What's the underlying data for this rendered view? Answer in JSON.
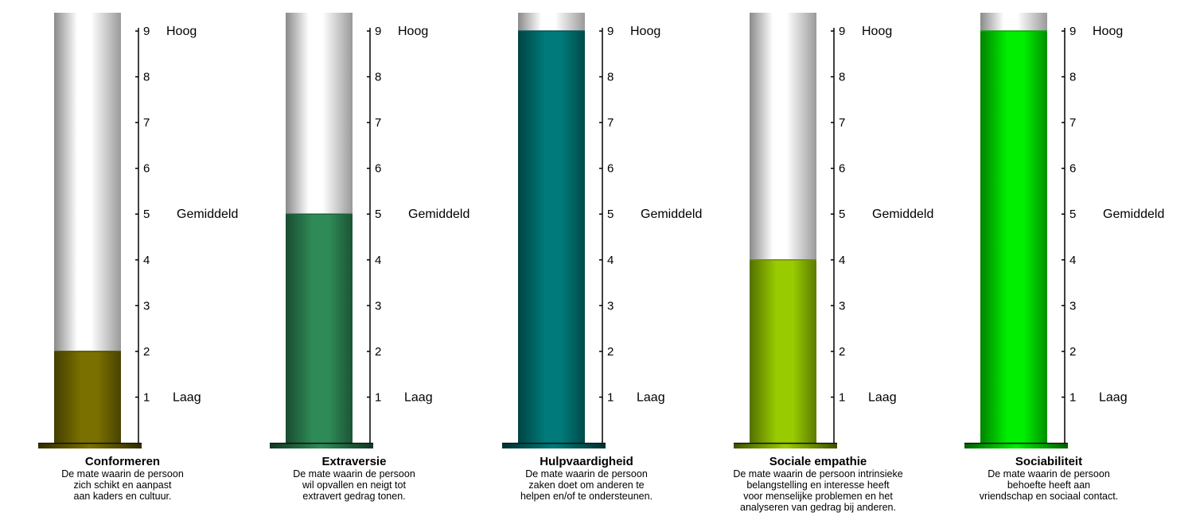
{
  "scale": {
    "min": 0,
    "max": 9.4,
    "ticks": [
      1,
      2,
      3,
      4,
      5,
      6,
      7,
      8,
      9
    ]
  },
  "levels": {
    "high": "Hoog",
    "mid": "Gemiddeld",
    "low": "Laag"
  },
  "chart_data": [
    {
      "type": "bar",
      "title": "Conformeren",
      "value": 2,
      "description": "De mate waarin de persoon\nzich schikt en aanpast\naan kaders en cultuur.",
      "color": "#7a7000"
    },
    {
      "type": "bar",
      "title": "Extraversie",
      "value": 5,
      "description": "De mate waarin de persoon\nwil opvallen en neigt tot\nextravert gedrag tonen.",
      "color": "#2e8b57"
    },
    {
      "type": "bar",
      "title": "Hulpvaardigheid",
      "value": 9,
      "description": "De mate waarin de persoon\nzaken doet om anderen te\nhelpen en/of te ondersteunen.",
      "color": "#007a7a"
    },
    {
      "type": "bar",
      "title": "Sociale empathie",
      "value": 4,
      "description": "De mate waarin de persoon intrinsieke\nbelangstelling en interesse heeft\nvoor menselijke problemen en het\nanalyseren van gedrag bij anderen.",
      "color": "#99cc00"
    },
    {
      "type": "bar",
      "title": "Sociabiliteit",
      "value": 9,
      "description": "De mate waarin de persoon\nbehoefte heeft aan\nvriendschap en sociaal contact.",
      "color": "#00ee00"
    }
  ]
}
